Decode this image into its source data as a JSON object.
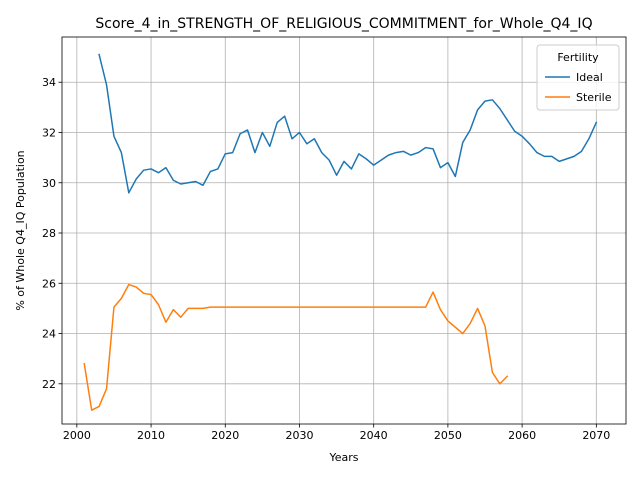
{
  "chart_data": {
    "type": "line",
    "title": "Score_4_in_STRENGTH_OF_RELIGIOUS_COMMITMENT_for_Whole_Q4_IQ",
    "xlabel": "Years",
    "ylabel": "% of Whole Q4_IQ Population",
    "xlim": [
      1998,
      2074
    ],
    "ylim": [
      20.4,
      35.8
    ],
    "xticks": [
      2000,
      2010,
      2020,
      2030,
      2040,
      2050,
      2060,
      2070
    ],
    "yticks": [
      22,
      24,
      26,
      28,
      30,
      32,
      34
    ],
    "grid": true,
    "legend": {
      "title": "Fertility",
      "placement": "top-right"
    },
    "series": [
      {
        "name": "Ideal",
        "color": "#1f77b4",
        "x": [
          2003,
          2004,
          2005,
          2006,
          2007,
          2008,
          2009,
          2010,
          2011,
          2012,
          2013,
          2014,
          2015,
          2016,
          2017,
          2018,
          2019,
          2020,
          2021,
          2022,
          2023,
          2024,
          2025,
          2026,
          2027,
          2028,
          2029,
          2030,
          2031,
          2032,
          2033,
          2034,
          2035,
          2036,
          2037,
          2038,
          2039,
          2040,
          2041,
          2042,
          2043,
          2044,
          2045,
          2046,
          2047,
          2048,
          2049,
          2050,
          2051,
          2052,
          2053,
          2054,
          2055,
          2056,
          2057,
          2058,
          2059,
          2060,
          2061,
          2062,
          2063,
          2064,
          2065,
          2066,
          2067,
          2068,
          2069,
          2070
        ],
        "y": [
          35.1,
          33.9,
          31.85,
          31.2,
          29.6,
          30.15,
          30.5,
          30.55,
          30.4,
          30.6,
          30.1,
          29.95,
          30.0,
          30.05,
          29.9,
          30.45,
          30.55,
          31.15,
          31.2,
          31.95,
          32.1,
          31.2,
          32.0,
          31.45,
          32.4,
          32.65,
          31.75,
          32.0,
          31.55,
          31.75,
          31.2,
          30.9,
          30.3,
          30.85,
          30.55,
          31.15,
          30.95,
          30.7,
          30.9,
          31.1,
          31.2,
          31.25,
          31.1,
          31.2,
          31.4,
          31.35,
          30.6,
          30.8,
          30.25,
          31.6,
          32.1,
          32.9,
          33.25,
          33.3,
          32.95,
          32.5,
          32.05,
          31.85,
          31.55,
          31.2,
          31.05,
          31.05,
          30.85,
          30.95,
          31.05,
          31.25,
          31.75,
          32.4
        ]
      },
      {
        "name": "Sterile",
        "color": "#ff7f0e",
        "x": [
          2001,
          2002,
          2003,
          2004,
          2005,
          2006,
          2007,
          2008,
          2009,
          2010,
          2011,
          2012,
          2013,
          2014,
          2015,
          2016,
          2017,
          2018,
          2019,
          2020,
          2021,
          2022,
          2023,
          2024,
          2025,
          2026,
          2027,
          2028,
          2029,
          2030,
          2031,
          2032,
          2033,
          2034,
          2035,
          2036,
          2037,
          2038,
          2039,
          2040,
          2041,
          2042,
          2043,
          2044,
          2045,
          2046,
          2047,
          2048,
          2049,
          2050,
          2051,
          2052,
          2053,
          2054,
          2055,
          2056,
          2057,
          2058
        ],
        "y": [
          22.8,
          20.95,
          21.1,
          21.8,
          25.05,
          25.4,
          25.95,
          25.85,
          25.6,
          25.55,
          25.15,
          24.45,
          24.95,
          24.65,
          25.0,
          25.0,
          25.0,
          25.05,
          25.05,
          25.05,
          25.05,
          25.05,
          25.05,
          25.05,
          25.05,
          25.05,
          25.05,
          25.05,
          25.05,
          25.05,
          25.05,
          25.05,
          25.05,
          25.05,
          25.05,
          25.05,
          25.05,
          25.05,
          25.05,
          25.05,
          25.05,
          25.05,
          25.05,
          25.05,
          25.05,
          25.05,
          25.05,
          25.65,
          24.95,
          24.5,
          24.25,
          24.0,
          24.4,
          25.0,
          24.3,
          22.45,
          22.0,
          22.3
        ]
      }
    ]
  }
}
